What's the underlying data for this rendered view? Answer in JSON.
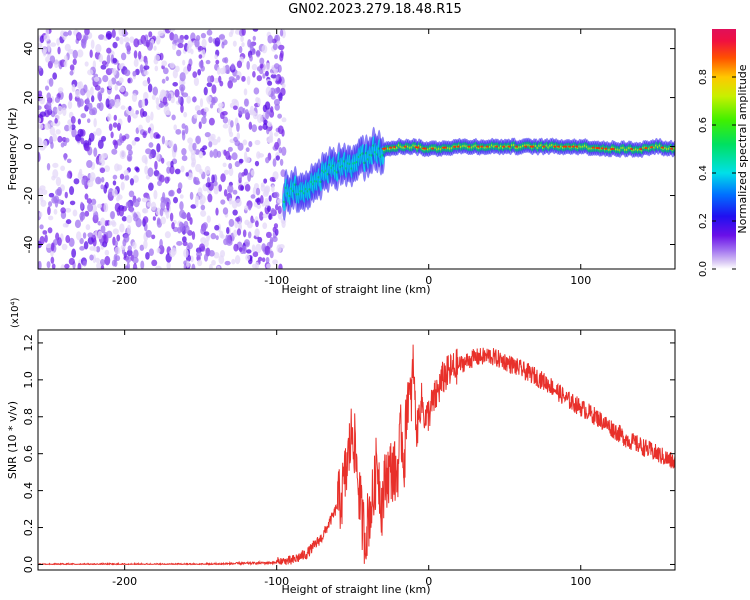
{
  "title": "GN02.2023.279.18.48.R15",
  "chart_data": [
    {
      "type": "heatmap",
      "xlabel": "Height of straight line (km)",
      "ylabel": "Frequency (Hz)",
      "xlim": [
        -257,
        162
      ],
      "ylim": [
        -50,
        48
      ],
      "x_ticks": [
        -200,
        -100,
        0,
        100
      ],
      "y_ticks": [
        -40,
        -20,
        0,
        20,
        40
      ],
      "x_tick_labels": [
        "-200",
        "-100",
        "0",
        "100"
      ],
      "y_tick_labels": [
        "-40",
        "-20",
        "0",
        "20",
        "40"
      ],
      "colorbar": {
        "label": "Normalized spectral amplitude",
        "range": [
          0,
          1
        ],
        "ticks": [
          0.0,
          0.2,
          0.4,
          0.6,
          0.8
        ],
        "tick_labels": [
          "0.0",
          "0.2",
          "0.4",
          "0.6",
          "0.8"
        ]
      },
      "noise_region_x": [
        -257,
        -95
      ],
      "ridge": {
        "x": [
          -95,
          -80,
          -65,
          -50,
          -40,
          -30,
          -20,
          -10,
          0,
          20,
          40,
          60,
          80,
          100,
          120,
          140,
          150,
          162
        ],
        "y": [
          -20,
          -16,
          -10,
          -6,
          -3,
          -1,
          0,
          0,
          -1,
          0,
          0,
          0,
          0,
          0,
          -1,
          -1,
          0,
          -1
        ]
      }
    },
    {
      "type": "line",
      "xlabel": "Height of straight line (km)",
      "ylabel": "SNR (10 * v/v)",
      "y_multiplier": "(x10⁴)",
      "xlim": [
        -257,
        162
      ],
      "ylim": [
        -0.03,
        1.27
      ],
      "x_ticks": [
        -200,
        -100,
        0,
        100
      ],
      "y_ticks": [
        0.0,
        0.2,
        0.4,
        0.6,
        0.8,
        1.0,
        1.2
      ],
      "x_tick_labels": [
        "-200",
        "-100",
        "0",
        "100"
      ],
      "y_tick_labels": [
        "0.0",
        "0.2",
        "0.4",
        "0.6",
        "0.8",
        "1.0",
        "1.2"
      ],
      "color": "#e8302a",
      "series": [
        {
          "x": [
            -257,
            -200,
            -150,
            -100,
            -90,
            -80,
            -70,
            -62,
            -57,
            -54,
            -50,
            -47,
            -44,
            -42,
            -39,
            -36,
            -34,
            -31,
            -28,
            -24,
            -21,
            -18,
            -16,
            -14,
            -12,
            -10,
            -8,
            -5,
            -2,
            0,
            5,
            10,
            20,
            30,
            40,
            50,
            60,
            70,
            80,
            90,
            100,
            110,
            120,
            130,
            140,
            150,
            162
          ],
          "y": [
            0.0,
            0.0,
            0.0,
            0.01,
            0.02,
            0.06,
            0.15,
            0.28,
            0.38,
            0.52,
            0.75,
            0.5,
            0.25,
            0.15,
            0.28,
            0.38,
            0.58,
            0.32,
            0.48,
            0.52,
            0.48,
            0.72,
            0.55,
            0.95,
            0.85,
            1.08,
            0.7,
            0.9,
            0.78,
            0.82,
            0.92,
            1.02,
            1.08,
            1.12,
            1.13,
            1.1,
            1.06,
            1.02,
            0.97,
            0.9,
            0.85,
            0.8,
            0.74,
            0.68,
            0.64,
            0.6,
            0.55
          ]
        }
      ],
      "noise_amplitude": [
        {
          "x": [
            -257,
            -100
          ],
          "amp": 0.006
        },
        {
          "x": [
            -100,
            -60
          ],
          "amp": 0.03
        },
        {
          "x": [
            -60,
            -10
          ],
          "amp": 0.18
        },
        {
          "x": [
            -10,
            20
          ],
          "amp": 0.1
        },
        {
          "x": [
            20,
            162
          ],
          "amp": 0.05
        }
      ]
    }
  ]
}
